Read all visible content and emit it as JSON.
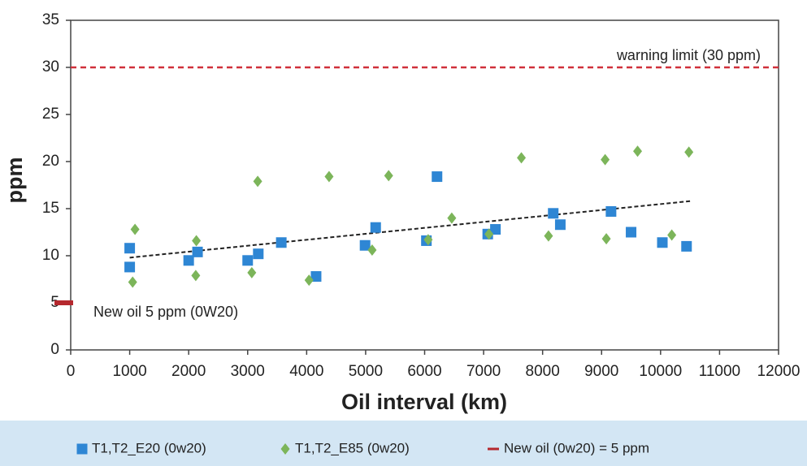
{
  "chart_data": {
    "type": "scatter",
    "x_label": "Oil interval (km)",
    "y_label": "ppm",
    "xlim": [
      0,
      12000
    ],
    "xticks": [
      0,
      1000,
      2000,
      3000,
      4000,
      5000,
      6000,
      7000,
      8000,
      9000,
      10000,
      11000,
      12000
    ],
    "ylim": [
      0,
      35
    ],
    "yticks": [
      0,
      5,
      10,
      15,
      20,
      25,
      30,
      35
    ],
    "grid": false,
    "series": [
      {
        "name": "T1,T2_E20 (0w20)",
        "color": "#2e86d4",
        "marker": "square",
        "x": [
          1000,
          1000,
          2000,
          2150,
          3000,
          3180,
          3570,
          4160,
          4990,
          5170,
          6030,
          6210,
          7070,
          7200,
          8180,
          8300,
          9160,
          9500,
          10030,
          10440
        ],
        "values": [
          10.8,
          8.8,
          9.5,
          10.4,
          9.5,
          10.2,
          11.4,
          7.8,
          11.1,
          13.0,
          11.6,
          18.4,
          12.3,
          12.8,
          14.5,
          13.3,
          14.7,
          12.5,
          11.4,
          11.0
        ]
      },
      {
        "name": "T1,T2_E85 (0w20)",
        "color": "#7cb55a",
        "marker": "diamond",
        "x": [
          1090,
          1050,
          2130,
          2120,
          3070,
          3170,
          4040,
          4380,
          5110,
          5390,
          6060,
          6460,
          7090,
          7640,
          8100,
          9060,
          9080,
          9610,
          10190,
          10480
        ],
        "values": [
          12.8,
          7.2,
          11.6,
          7.9,
          8.2,
          17.9,
          7.4,
          18.4,
          10.6,
          18.5,
          11.7,
          14.0,
          12.3,
          20.4,
          12.1,
          20.2,
          11.8,
          21.1,
          12.2,
          21.0
        ]
      }
    ],
    "trendline": {
      "color": "#222222",
      "x": [
        1000,
        10500
      ],
      "values": [
        9.8,
        15.8
      ]
    },
    "reference_lines": [
      {
        "name": "New oil (0w20) = 5 ppm",
        "value": 5,
        "label": "New oil  5 ppm (0W20)",
        "color": "#b5282e"
      },
      {
        "value": 30,
        "label": "warning limit (30 ppm)",
        "color": "#d0303a"
      }
    ],
    "legend": "bottom"
  }
}
